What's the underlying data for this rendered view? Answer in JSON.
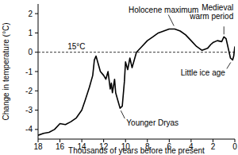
{
  "chart_data": {
    "type": "line",
    "x_label": "Thousands of years before the present",
    "y_label": "Change in temperature (°C)",
    "x": [
      18,
      17.5,
      17,
      16.5,
      16,
      15.5,
      15,
      14.5,
      14,
      13.7,
      13.3,
      13.0,
      12.85,
      12.7,
      12.5,
      12.3,
      12.0,
      11.8,
      11.6,
      11.4,
      11.3,
      11.2,
      11.0,
      10.9,
      10.7,
      10.5,
      10.3,
      10.1,
      10.0,
      9.8,
      9.6,
      9.4,
      9.2,
      9.0,
      8.5,
      8.0,
      7.5,
      7.0,
      6.5,
      6.0,
      5.5,
      5.0,
      4.5,
      4.0,
      3.5,
      3.0,
      2.5,
      2.2,
      2.0,
      1.6,
      1.2,
      1.0,
      0.8,
      0.6,
      0.4,
      0.2,
      0.1,
      0
    ],
    "values": [
      -4.3,
      -4.2,
      -4.15,
      -4.0,
      -3.7,
      -3.75,
      -3.6,
      -3.4,
      -3.0,
      -2.5,
      -1.8,
      -1.2,
      -0.4,
      -0.2,
      -0.6,
      -1.0,
      -1.2,
      -1.4,
      -1.0,
      -1.9,
      -1.6,
      -2.1,
      -1.4,
      -2.1,
      -2.5,
      -2.9,
      -2.8,
      -1.5,
      -0.5,
      -0.9,
      -0.3,
      -0.8,
      -0.4,
      0,
      0.3,
      0.6,
      0.8,
      1.0,
      1.1,
      1.2,
      1.2,
      1.1,
      0.9,
      0.6,
      0.3,
      0.1,
      0.2,
      0.4,
      0.5,
      0.6,
      0.55,
      0.8,
      0.7,
      0.2,
      -0.3,
      -0.4,
      -0.2,
      0.3
    ],
    "color": "#000000",
    "xlim": [
      18,
      0
    ],
    "xticks": [
      18,
      16,
      14,
      12,
      10,
      8,
      6,
      4,
      2,
      0
    ],
    "ylim": [
      -4.5,
      2.5
    ],
    "yticks": [
      -4,
      -3,
      -2,
      -1,
      0,
      1,
      2
    ],
    "grid": false,
    "reference_lines": [
      {
        "y": 0,
        "label": "15°C",
        "line_style": "dashed"
      }
    ],
    "annotations": [
      {
        "text": "Holocene maximum",
        "x": 5.5,
        "y": 1.2
      },
      {
        "text": "Medieval warm period",
        "x": 1.0,
        "y": 0.8
      },
      {
        "text": "Little ice age",
        "x": 0.3,
        "y": -0.4
      },
      {
        "text": "Younger Dryas",
        "x": 10.5,
        "y": -2.9
      }
    ]
  }
}
